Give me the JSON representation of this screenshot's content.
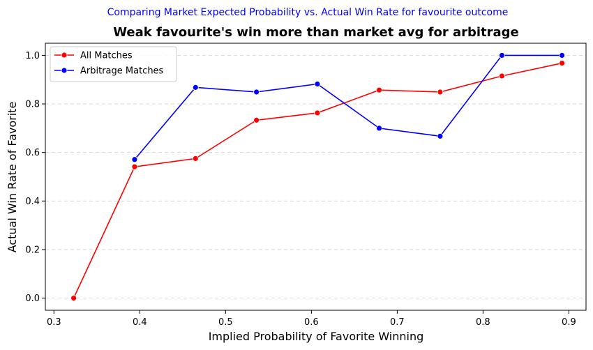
{
  "chart_data": {
    "type": "line",
    "suptitle": "Comparing Market Expected Probability vs. Actual Win Rate for favourite outcome",
    "title": "Weak favourite's win more than market avg for arbitrage",
    "xlabel": "Implied Probability of Favorite Winning",
    "ylabel": "Actual Win Rate of Favorite",
    "xlim": [
      0.29,
      0.92
    ],
    "ylim": [
      -0.05,
      1.05
    ],
    "xticks": [
      0.3,
      0.4,
      0.5,
      0.6,
      0.7,
      0.8,
      0.9
    ],
    "xtick_labels": [
      "0.3",
      "0.4",
      "0.5",
      "0.6",
      "0.7",
      "0.8",
      "0.9"
    ],
    "yticks": [
      0.0,
      0.2,
      0.4,
      0.6,
      0.8,
      1.0
    ],
    "ytick_labels": [
      "0.0",
      "0.2",
      "0.4",
      "0.6",
      "0.8",
      "1.0"
    ],
    "grid": "y-dashed",
    "legend_position": "top-left",
    "series": [
      {
        "name": "All Matches",
        "color": "#ff0000",
        "x": [
          0.323,
          0.394,
          0.465,
          0.536,
          0.607,
          0.679,
          0.75,
          0.822,
          0.892
        ],
        "y": [
          0.0,
          0.541,
          0.575,
          0.733,
          0.763,
          0.857,
          0.849,
          0.915,
          0.968
        ]
      },
      {
        "name": "Arbitrage Matches",
        "color": "#0000ff",
        "x": [
          0.394,
          0.465,
          0.536,
          0.607,
          0.679,
          0.75,
          0.822,
          0.892
        ],
        "y": [
          0.571,
          0.868,
          0.849,
          0.882,
          0.7,
          0.667,
          1.0,
          1.0
        ]
      }
    ]
  },
  "colors": {
    "suptitle": "#0000ff",
    "grid": "#d0d0d0",
    "axis": "#000000"
  }
}
